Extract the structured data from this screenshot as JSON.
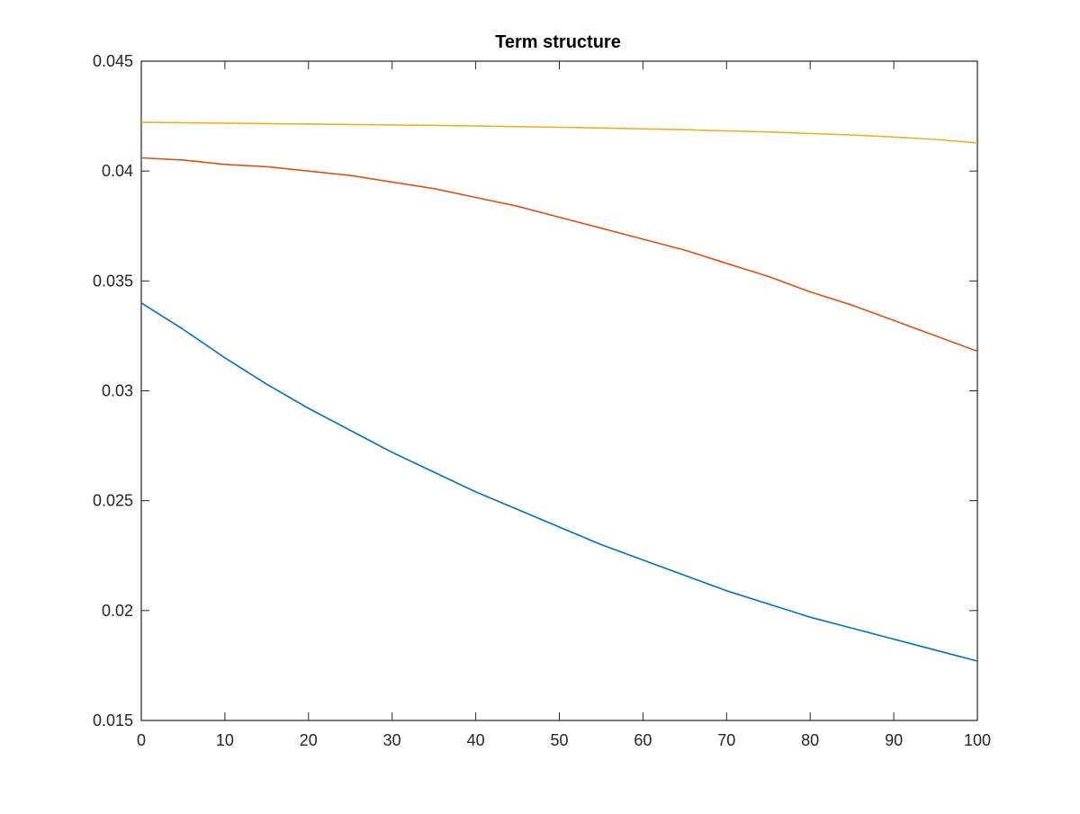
{
  "chart_data": {
    "type": "line",
    "title": "Term structure",
    "xlabel": "",
    "ylabel": "",
    "xlim": [
      0,
      100
    ],
    "ylim": [
      0.015,
      0.045
    ],
    "xticks": [
      0,
      10,
      20,
      30,
      40,
      50,
      60,
      70,
      80,
      90,
      100
    ],
    "xtick_labels": [
      "0",
      "10",
      "20",
      "30",
      "40",
      "50",
      "60",
      "70",
      "80",
      "90",
      "100"
    ],
    "yticks": [
      0.015,
      0.02,
      0.025,
      0.03,
      0.035,
      0.04,
      0.045
    ],
    "ytick_labels": [
      "0.015",
      "0.02",
      "0.025",
      "0.03",
      "0.035",
      "0.04",
      "0.045"
    ],
    "grid": false,
    "legend": "none",
    "x": [
      0,
      5,
      10,
      15,
      20,
      25,
      30,
      35,
      40,
      45,
      50,
      55,
      60,
      65,
      70,
      75,
      80,
      85,
      90,
      95,
      100
    ],
    "series": [
      {
        "color": "#0072BD",
        "values": [
          0.034,
          0.0328,
          0.0315,
          0.0303,
          0.0292,
          0.0282,
          0.0272,
          0.0263,
          0.0254,
          0.0246,
          0.0238,
          0.023,
          0.0223,
          0.0216,
          0.0209,
          0.0203,
          0.0197,
          0.0192,
          0.0187,
          0.0182,
          0.0177
        ]
      },
      {
        "color": "#D95319",
        "values": [
          0.0406,
          0.0405,
          0.0403,
          0.0402,
          0.04,
          0.0398,
          0.0395,
          0.0392,
          0.0388,
          0.0384,
          0.0379,
          0.0374,
          0.0369,
          0.0364,
          0.0358,
          0.0352,
          0.0345,
          0.0339,
          0.0332,
          0.0325,
          0.0318
        ]
      },
      {
        "color": "#EDB120",
        "values": [
          0.04222,
          0.0422,
          0.04218,
          0.04216,
          0.04214,
          0.04212,
          0.0421,
          0.04208,
          0.04205,
          0.04202,
          0.04199,
          0.04196,
          0.04192,
          0.04188,
          0.04183,
          0.04178,
          0.04171,
          0.04164,
          0.04155,
          0.04144,
          0.04128
        ]
      }
    ]
  }
}
